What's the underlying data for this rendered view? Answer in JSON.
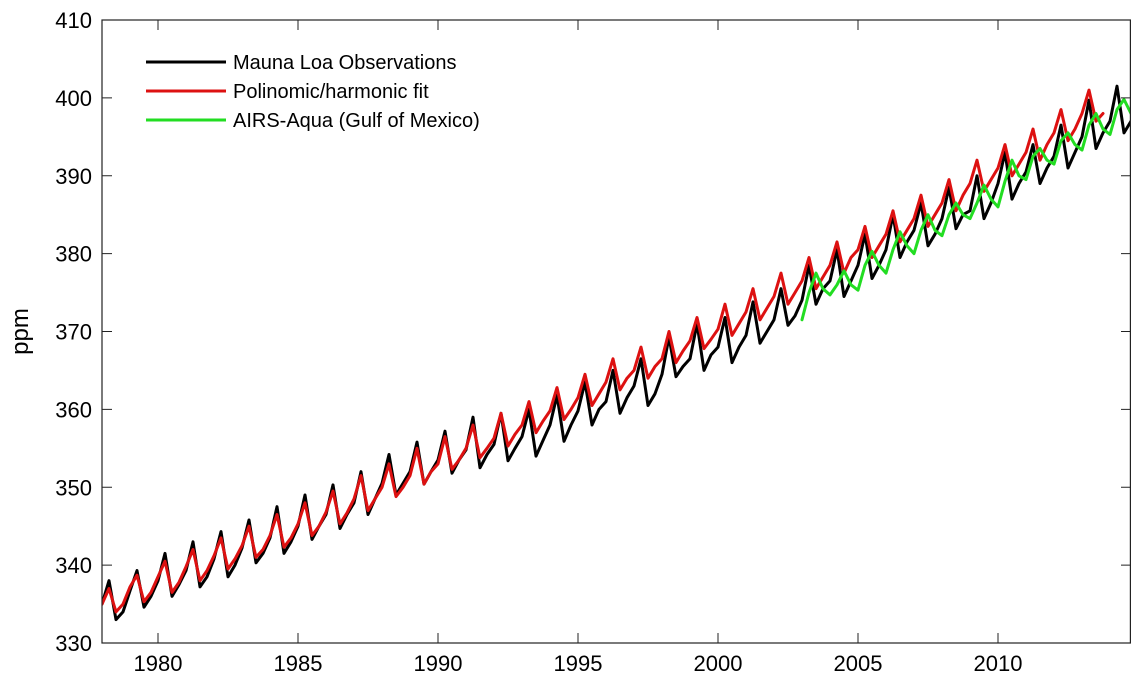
{
  "chart_data": {
    "type": "line",
    "title": "",
    "xlabel": "",
    "ylabel": "ppm",
    "xlim": [
      1978,
      2014.75
    ],
    "ylim": [
      330,
      410
    ],
    "xticks": [
      "1980",
      "1985",
      "1990",
      "1995",
      "2000",
      "2005",
      "2010"
    ],
    "xtick_values": [
      1980,
      1985,
      1990,
      1995,
      2000,
      2005,
      2010
    ],
    "yticks": [
      "330",
      "340",
      "350",
      "360",
      "370",
      "380",
      "390",
      "400",
      "410"
    ],
    "ytick_values": [
      330,
      340,
      350,
      360,
      370,
      380,
      390,
      400,
      410
    ],
    "grid": false,
    "legend_position": "top-left",
    "series": [
      {
        "name": "Mauna Loa Observations",
        "color": "#000000",
        "x_start": 1978.0,
        "x_step": 0.25,
        "values": [
          335.0,
          338.0,
          333.0,
          334.0,
          336.7,
          339.3,
          334.6,
          336.0,
          338.0,
          341.5,
          336.0,
          337.5,
          339.3,
          343.0,
          337.2,
          338.5,
          340.8,
          344.3,
          338.5,
          340.0,
          342.2,
          345.8,
          340.3,
          341.5,
          343.5,
          347.5,
          341.5,
          343.0,
          345.0,
          349.0,
          343.3,
          345.0,
          346.5,
          350.3,
          344.7,
          346.5,
          348.0,
          352.0,
          346.5,
          348.5,
          350.5,
          354.2,
          349.0,
          350.5,
          352.0,
          355.8,
          350.4,
          352.0,
          353.5,
          357.2,
          351.8,
          353.5,
          354.8,
          359.0,
          352.5,
          354.2,
          355.5,
          359.5,
          353.4,
          355.0,
          356.5,
          360.0,
          354.0,
          356.0,
          358.0,
          361.8,
          355.9,
          358.0,
          359.8,
          363.5,
          358.0,
          360.0,
          361.0,
          365.0,
          359.5,
          361.5,
          363.0,
          366.5,
          360.5,
          362.0,
          364.5,
          369.3,
          364.2,
          365.5,
          366.5,
          371.0,
          365.0,
          367.0,
          368.0,
          371.8,
          366.0,
          368.0,
          369.5,
          373.8,
          368.5,
          370.0,
          371.5,
          375.5,
          370.8,
          372.0,
          374.0,
          378.5,
          373.5,
          375.5,
          376.5,
          380.5,
          374.5,
          376.5,
          378.5,
          382.5,
          376.8,
          378.5,
          380.5,
          385.0,
          379.5,
          381.5,
          383.0,
          386.5,
          381.0,
          382.5,
          384.5,
          388.5,
          383.2,
          385.0,
          385.5,
          390.0,
          384.5,
          386.5,
          389.0,
          393.0,
          387.0,
          389.0,
          390.5,
          394.0,
          389.0,
          391.0,
          392.5,
          396.5,
          391.0,
          393.0,
          395.0,
          399.7,
          393.5,
          395.5,
          397.0,
          401.5,
          395.5,
          397.0
        ]
      },
      {
        "name": "Polinomic/harmonic fit",
        "color": "#dd1111",
        "x_start": 1978.0,
        "x_step": 0.25,
        "values": [
          335.0,
          337.0,
          334.0,
          335.0,
          337.2,
          338.7,
          335.3,
          336.5,
          338.5,
          340.5,
          336.5,
          337.8,
          339.8,
          342.0,
          338.0,
          339.3,
          341.2,
          343.5,
          339.5,
          340.8,
          342.5,
          345.0,
          341.0,
          342.0,
          343.8,
          346.5,
          342.3,
          343.5,
          345.3,
          348.0,
          343.8,
          345.0,
          346.8,
          349.5,
          345.3,
          346.7,
          348.5,
          351.5,
          347.0,
          348.5,
          350.0,
          353.0,
          348.8,
          350.0,
          351.5,
          355.0,
          350.4,
          352.0,
          353.0,
          356.5,
          352.3,
          353.5,
          355.0,
          358.0,
          353.8,
          355.0,
          356.3,
          359.5,
          355.3,
          356.8,
          358.0,
          361.0,
          357.0,
          358.5,
          359.8,
          362.8,
          358.7,
          360.0,
          361.5,
          364.5,
          360.5,
          362.0,
          363.5,
          366.5,
          362.5,
          364.0,
          365.0,
          368.0,
          364.0,
          365.5,
          366.5,
          370.0,
          366.0,
          367.5,
          368.8,
          371.8,
          367.8,
          369.0,
          370.3,
          373.5,
          369.5,
          371.0,
          372.5,
          375.5,
          371.5,
          373.0,
          374.5,
          377.5,
          373.5,
          375.0,
          376.5,
          379.5,
          375.5,
          377.0,
          378.5,
          381.5,
          377.5,
          379.5,
          380.5,
          383.5,
          379.5,
          381.0,
          382.5,
          385.5,
          381.5,
          383.0,
          384.5,
          387.5,
          383.5,
          385.0,
          386.5,
          389.5,
          385.5,
          387.5,
          389.0,
          392.0,
          388.0,
          389.5,
          391.0,
          394.0,
          390.0,
          391.5,
          393.0,
          396.0,
          392.0,
          394.0,
          395.5,
          398.5,
          394.5,
          396.0,
          398.0,
          401.0,
          397.0,
          398.0
        ]
      },
      {
        "name": "AIRS-Aqua (Gulf of Mexico)",
        "color": "#22dd22",
        "x_start": 2003.0,
        "x_step": 0.25,
        "values": [
          371.5,
          375.0,
          377.5,
          375.5,
          374.7,
          376.0,
          377.8,
          376.0,
          375.3,
          378.5,
          380.3,
          378.5,
          377.5,
          380.5,
          382.8,
          381.0,
          380.0,
          383.0,
          385.0,
          383.0,
          382.3,
          385.0,
          386.5,
          385.0,
          384.5,
          386.5,
          388.8,
          387.0,
          386.0,
          389.3,
          392.0,
          390.0,
          389.5,
          392.5,
          393.5,
          392.0,
          391.5,
          394.5,
          395.5,
          394.0,
          393.3,
          396.5,
          398.0,
          396.0,
          395.3,
          398.5,
          399.8,
          398.0
        ]
      }
    ]
  }
}
